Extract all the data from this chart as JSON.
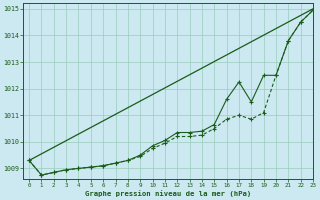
{
  "title": "Graphe pression niveau de la mer (hPa)",
  "background_color": "#cce8f0",
  "plot_bg_color": "#cce8f0",
  "grid_color": "#99ccbb",
  "line_color": "#1a5c1a",
  "xlim": [
    -0.5,
    23
  ],
  "ylim": [
    1008.6,
    1015.2
  ],
  "yticks": [
    1009,
    1010,
    1011,
    1012,
    1013,
    1014,
    1015
  ],
  "xticks": [
    0,
    1,
    2,
    3,
    4,
    5,
    6,
    7,
    8,
    9,
    10,
    11,
    12,
    13,
    14,
    15,
    16,
    17,
    18,
    19,
    20,
    21,
    22,
    23
  ],
  "series1_x": [
    0,
    23
  ],
  "series1_y": [
    1009.3,
    1015.0
  ],
  "series2_x": [
    0,
    1,
    2,
    3,
    4,
    5,
    6,
    7,
    8,
    9,
    10,
    11,
    12,
    13,
    14,
    15,
    16,
    17,
    18,
    19,
    20,
    21,
    22,
    23
  ],
  "series2_y": [
    1009.3,
    1008.75,
    1008.85,
    1008.95,
    1009.0,
    1009.05,
    1009.1,
    1009.2,
    1009.3,
    1009.45,
    1009.75,
    1009.95,
    1010.2,
    1010.2,
    1010.25,
    1010.5,
    1010.85,
    1011.0,
    1010.85,
    1011.1,
    1012.5,
    1013.8,
    1014.5,
    1014.95
  ],
  "series3_x": [
    0,
    1,
    2,
    3,
    4,
    5,
    6,
    7,
    8,
    9,
    10,
    11,
    12,
    13,
    14,
    15,
    16,
    17,
    18,
    19,
    20,
    21,
    22,
    23
  ],
  "series3_y": [
    1009.3,
    1008.75,
    1008.85,
    1008.95,
    1009.0,
    1009.05,
    1009.1,
    1009.2,
    1009.3,
    1009.5,
    1009.85,
    1010.05,
    1010.35,
    1010.35,
    1010.4,
    1010.65,
    1011.6,
    1012.25,
    1011.5,
    1012.5,
    1012.5,
    1013.8,
    1014.5,
    1014.95
  ]
}
